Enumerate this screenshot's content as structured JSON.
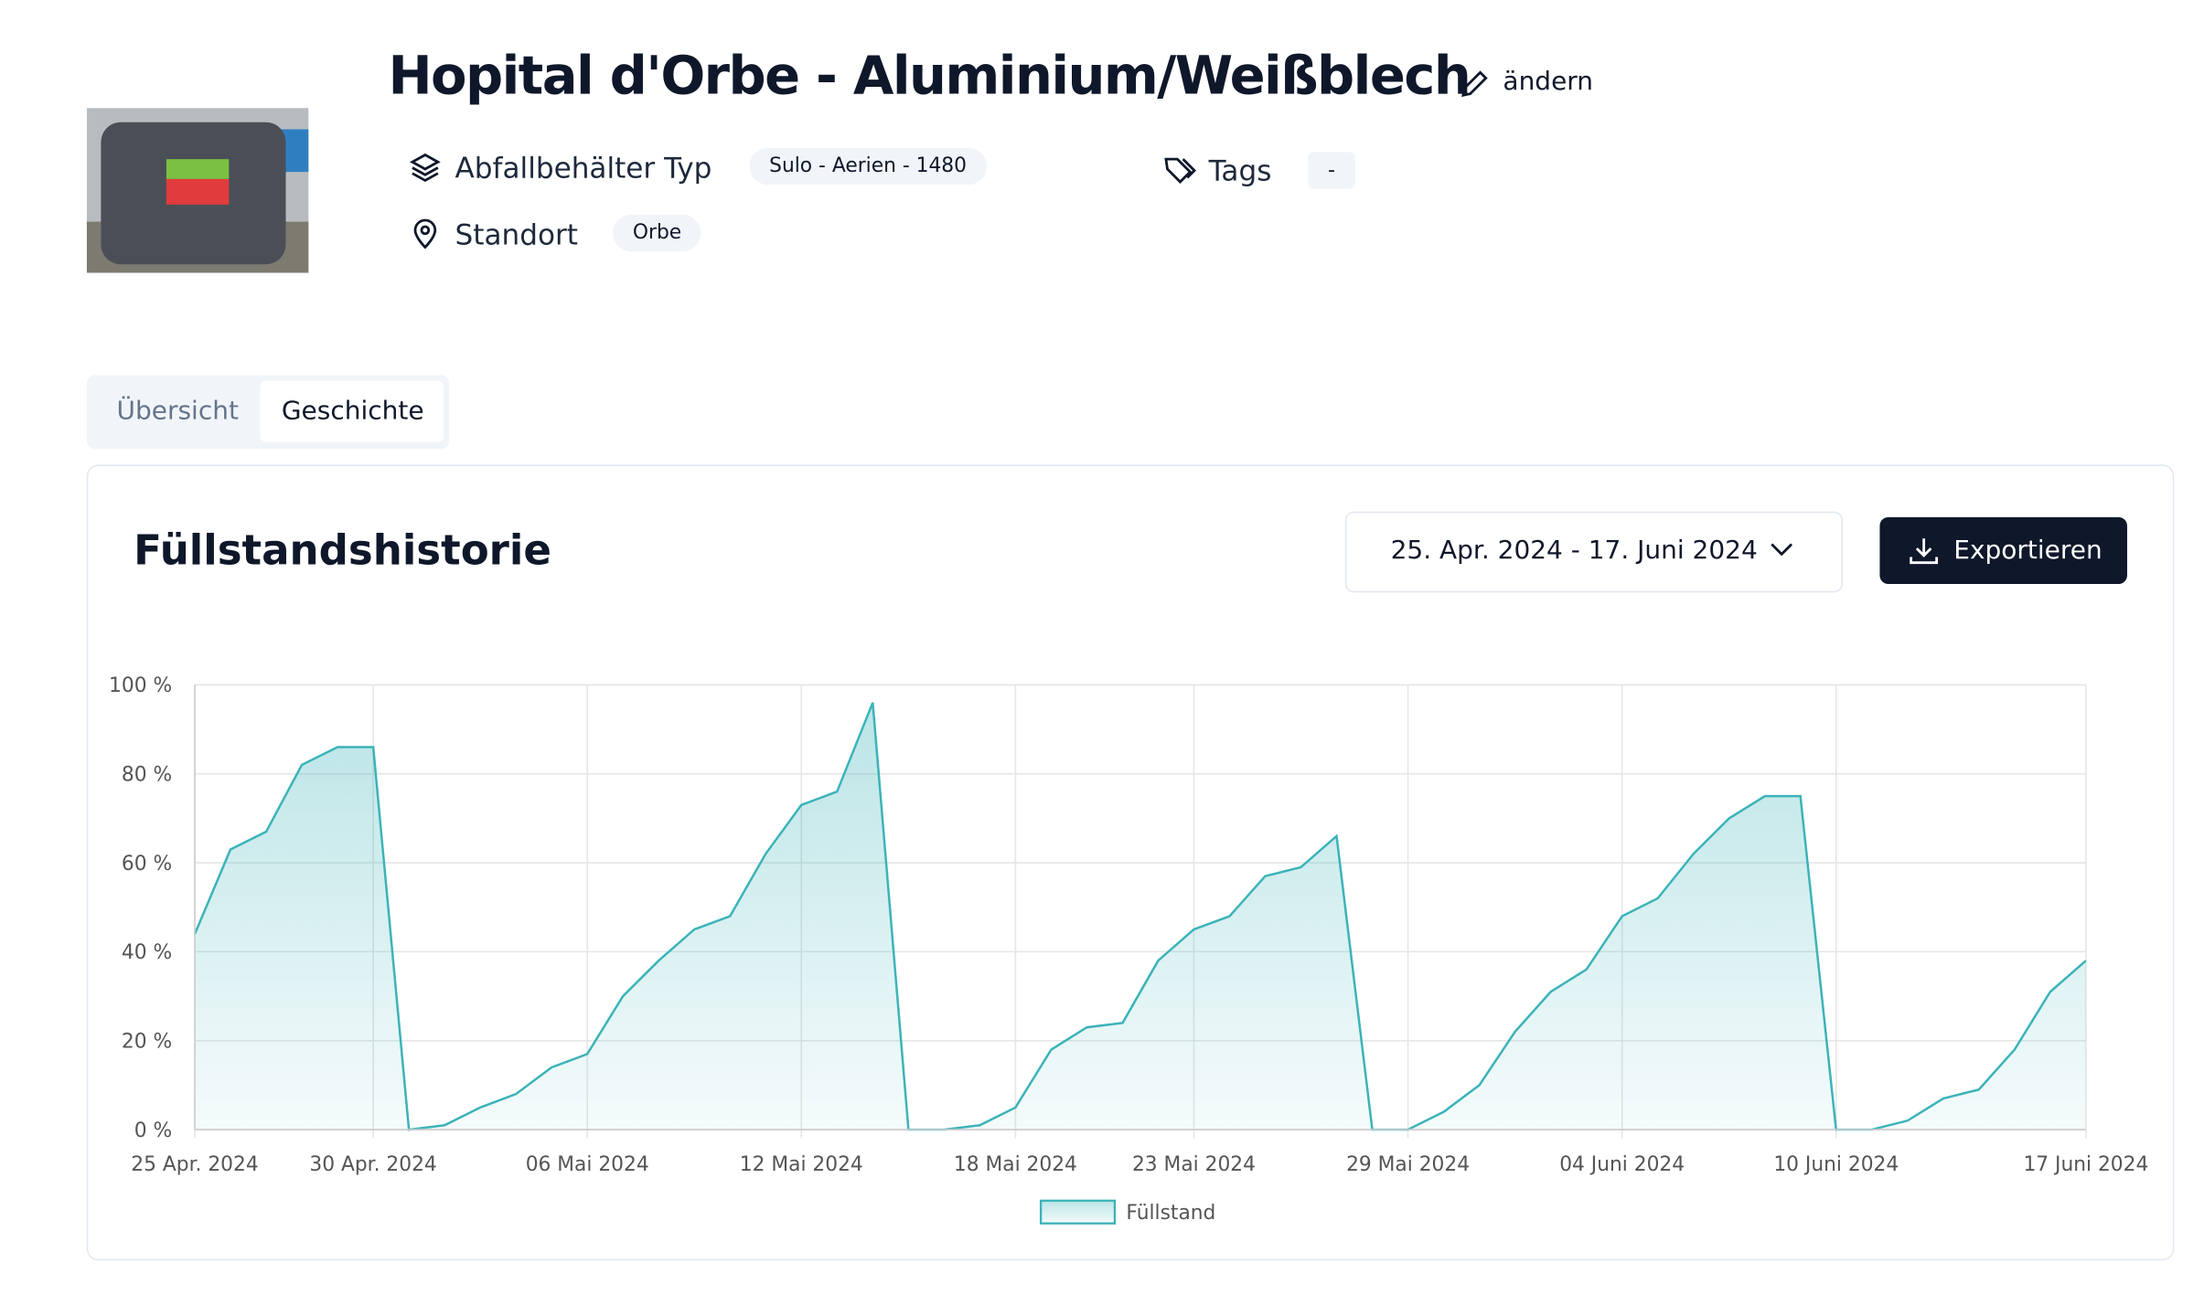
{
  "header": {
    "title": "Hopital d'Orbe - Aluminium/Weißblech",
    "edit": "ändern",
    "type_label": "Abfallbehälter Typ",
    "type_value": "Sulo - Aerien - 1480",
    "tags_label": "Tags",
    "tags_value": "-",
    "location_label": "Standort",
    "location_value": "Orbe"
  },
  "tabs": [
    "Übersicht",
    "Geschichte"
  ],
  "card": {
    "title": "Füllstandshistorie",
    "date_range": "25. Apr. 2024 - 17. Juni 2024",
    "export": "Exportieren"
  },
  "chart_data": {
    "type": "area",
    "x": [
      "2024-04-25",
      "2024-04-26",
      "2024-04-27",
      "2024-04-28",
      "2024-04-29",
      "2024-04-30",
      "2024-05-01",
      "2024-05-02",
      "2024-05-03",
      "2024-05-04",
      "2024-05-05",
      "2024-05-06",
      "2024-05-07",
      "2024-05-08",
      "2024-05-09",
      "2024-05-10",
      "2024-05-11",
      "2024-05-12",
      "2024-05-13",
      "2024-05-14",
      "2024-05-15",
      "2024-05-16",
      "2024-05-17",
      "2024-05-18",
      "2024-05-19",
      "2024-05-20",
      "2024-05-21",
      "2024-05-22",
      "2024-05-23",
      "2024-05-24",
      "2024-05-25",
      "2024-05-26",
      "2024-05-27",
      "2024-05-28",
      "2024-05-29",
      "2024-05-30",
      "2024-05-31",
      "2024-06-01",
      "2024-06-02",
      "2024-06-03",
      "2024-06-04",
      "2024-06-05",
      "2024-06-06",
      "2024-06-07",
      "2024-06-08",
      "2024-06-09",
      "2024-06-10",
      "2024-06-11",
      "2024-06-12",
      "2024-06-13",
      "2024-06-14",
      "2024-06-15",
      "2024-06-16",
      "2024-06-17"
    ],
    "series": [
      {
        "name": "Füllstand",
        "color": "#3bb3b8",
        "values": [
          44,
          63,
          67,
          82,
          86,
          86,
          0,
          1,
          5,
          8,
          14,
          17,
          30,
          38,
          45,
          48,
          62,
          73,
          76,
          96,
          0,
          0,
          1,
          5,
          18,
          23,
          24,
          38,
          45,
          48,
          57,
          59,
          66,
          0,
          0,
          4,
          10,
          22,
          31,
          36,
          48,
          52,
          62,
          70,
          75,
          75,
          0,
          0,
          2,
          7,
          9,
          18,
          31,
          38
        ]
      }
    ],
    "xlim": [
      "2024-04-25",
      "2024-06-17"
    ],
    "xticks": [
      {
        "value": "2024-04-25",
        "label": "25 Apr. 2024"
      },
      {
        "value": "2024-04-30",
        "label": "30 Apr. 2024"
      },
      {
        "value": "2024-05-06",
        "label": "06 Mai 2024"
      },
      {
        "value": "2024-05-12",
        "label": "12 Mai 2024"
      },
      {
        "value": "2024-05-18",
        "label": "18 Mai 2024"
      },
      {
        "value": "2024-05-23",
        "label": "23 Mai 2024"
      },
      {
        "value": "2024-05-29",
        "label": "29 Mai 2024"
      },
      {
        "value": "2024-06-04",
        "label": "04 Juni 2024"
      },
      {
        "value": "2024-06-10",
        "label": "10 Juni 2024"
      },
      {
        "value": "2024-06-17",
        "label": "17 Juni 2024"
      }
    ],
    "ylim": [
      0,
      100
    ],
    "yticks": [
      {
        "value": 0,
        "label": "0 %"
      },
      {
        "value": 20,
        "label": "20 %"
      },
      {
        "value": 40,
        "label": "40 %"
      },
      {
        "value": 60,
        "label": "60 %"
      },
      {
        "value": 80,
        "label": "80 %"
      },
      {
        "value": 100,
        "label": "100 %"
      }
    ],
    "grid": true
  }
}
